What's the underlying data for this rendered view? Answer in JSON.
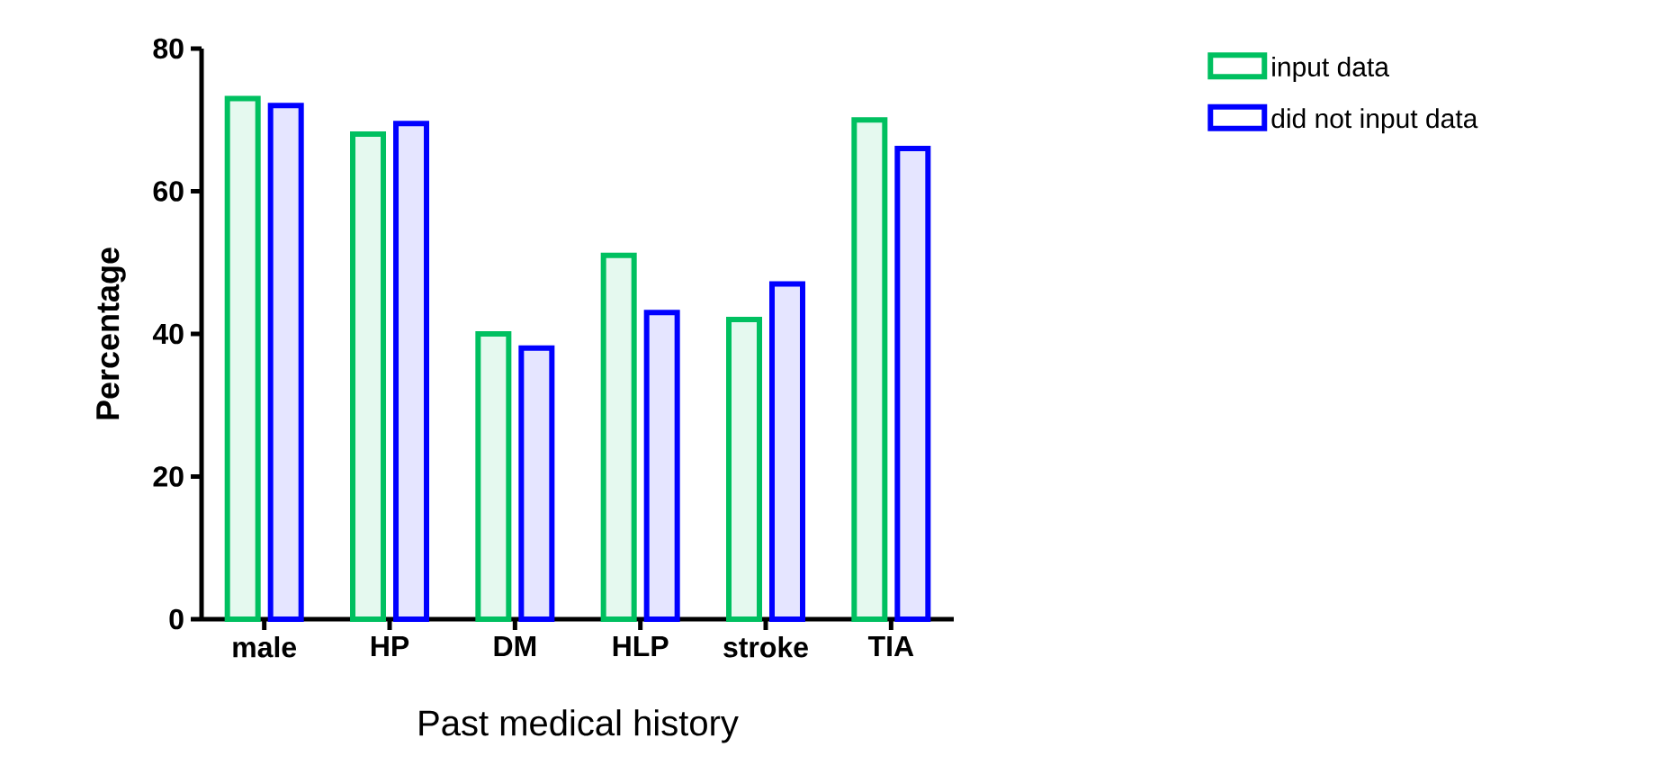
{
  "chart_data": {
    "type": "bar",
    "xlabel": "Past medical history",
    "ylabel": "Percentage",
    "categories": [
      "male",
      "HP",
      "DM",
      "HLP",
      "stroke",
      "TIA"
    ],
    "series": [
      {
        "name": "input data",
        "color": "#00c060",
        "values": [
          73,
          68,
          40,
          51,
          42,
          70
        ]
      },
      {
        "name": "did not input data",
        "color": "#0000ff",
        "values": [
          72,
          69.5,
          38,
          43,
          47,
          66
        ]
      }
    ],
    "ylim": [
      0,
      80
    ],
    "yticks": [
      0,
      20,
      40,
      60,
      80
    ],
    "grid": false,
    "legend": "top right"
  }
}
